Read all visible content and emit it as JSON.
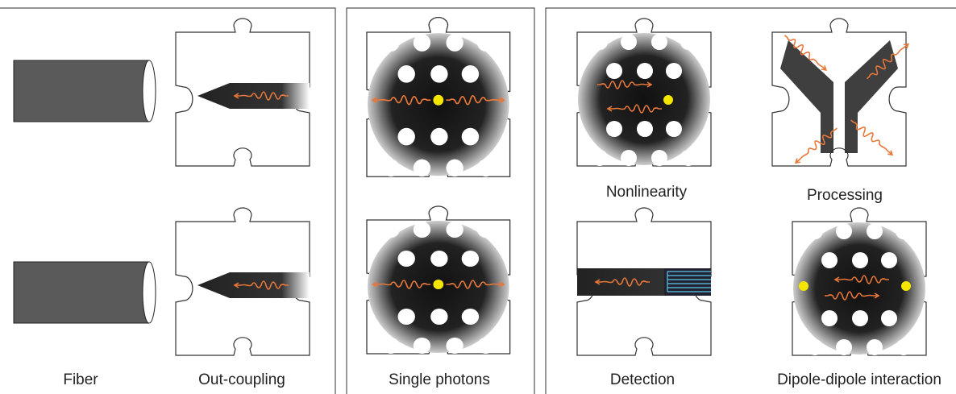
{
  "labels": {
    "fiber": "Fiber",
    "out_coupling": "Out-coupling",
    "single_photons": "Single photons",
    "nonlinearity": "Nonlinearity",
    "processing": "Processing",
    "detection": "Detection",
    "dipole": "Dipole-dipole interaction"
  }
}
